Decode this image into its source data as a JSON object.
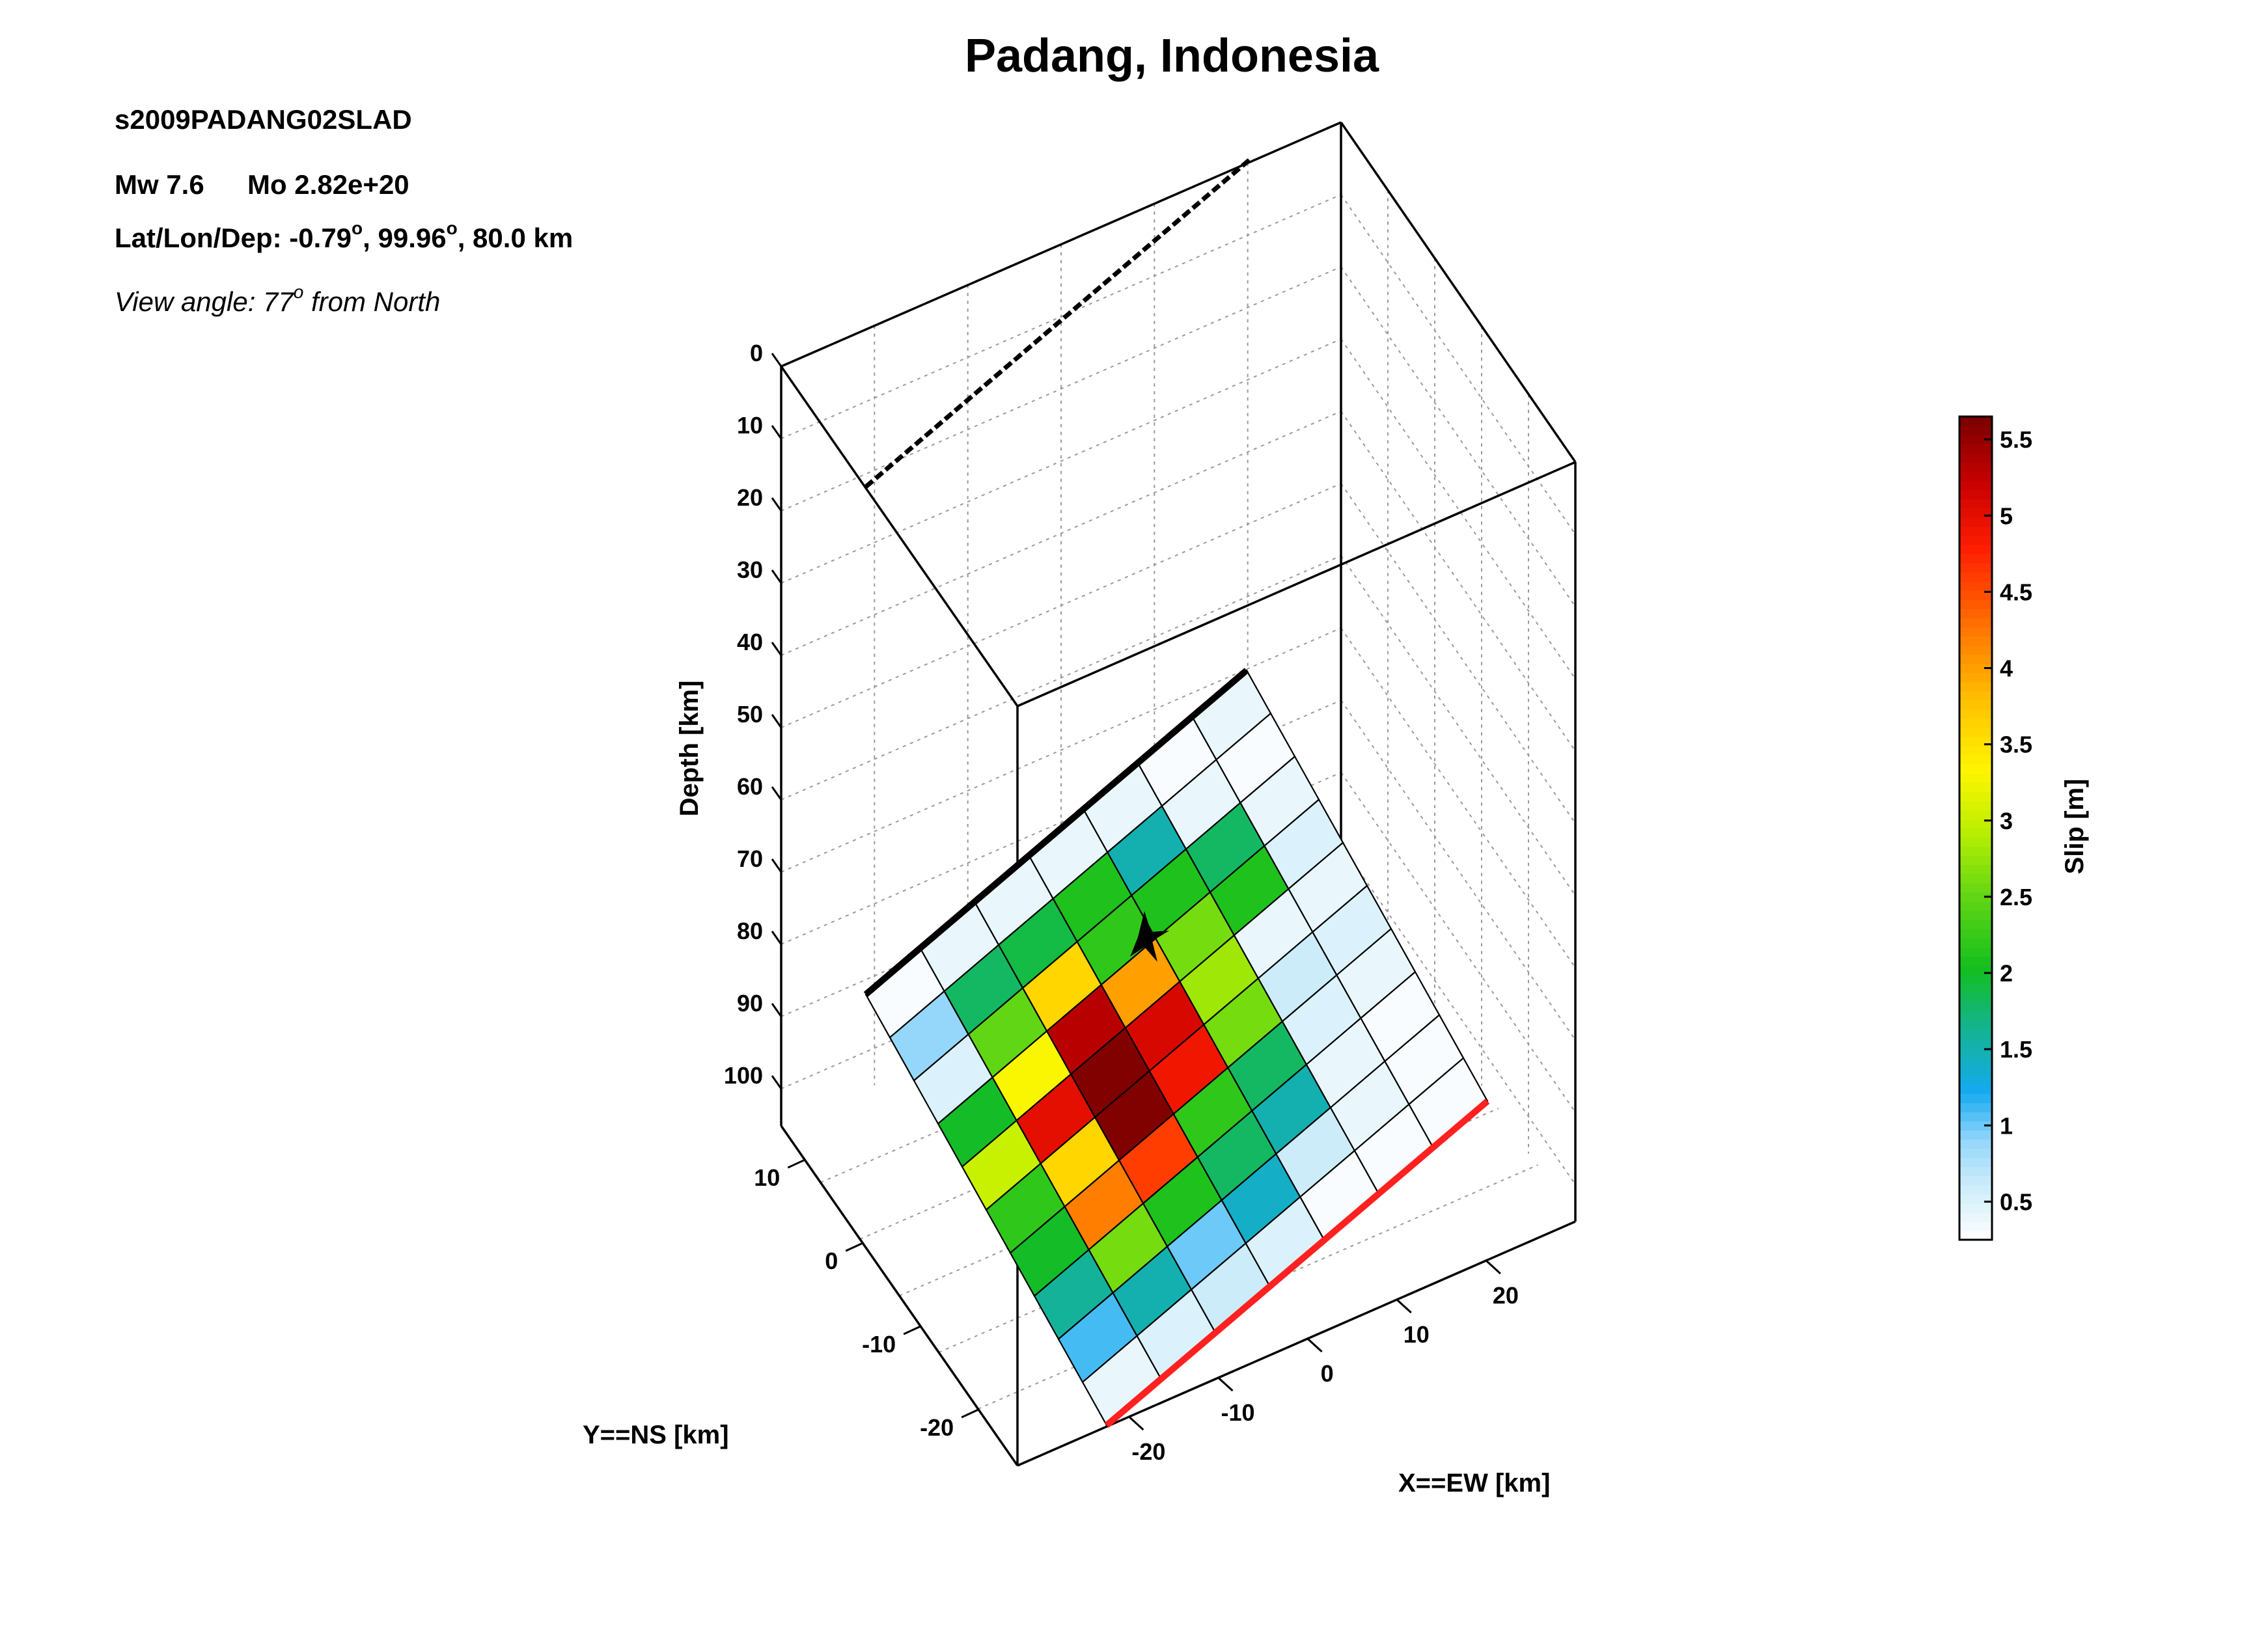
{
  "figure": {
    "title": "Padang, Indonesia",
    "event_id": "s2009PADANG02SLAD",
    "mw_label": "Mw 7.6",
    "mo_label": "Mo 2.82e+20",
    "location_prefix": "Lat/Lon/Dep: -0.79",
    "location_mid": ", 99.96",
    "location_suffix": ", 80.0 km",
    "degree_mark": "o",
    "view_prefix": "View angle: 77",
    "view_suffix": " from North"
  },
  "chart_data": {
    "type": "heatmap",
    "zlabel": "Depth [km]",
    "ylabel": "Y==NS [km]",
    "xlabel": "X==EW [km]",
    "colorbar_label": "Slip [m]",
    "depth_ticks": [
      "0",
      "10",
      "20",
      "30",
      "40",
      "50",
      "60",
      "70",
      "80",
      "90",
      "100"
    ],
    "ns_ticks": [
      "10",
      "0",
      "-10",
      "-20"
    ],
    "ew_ticks": [
      "-20",
      "-10",
      "0",
      "10",
      "20"
    ],
    "colorbar_ticks": [
      "0.5",
      "1",
      "1.5",
      "2",
      "2.5",
      "3",
      "3.5",
      "4",
      "4.5",
      "5",
      "5.5"
    ],
    "colorbar_range": [
      0.25,
      5.65
    ],
    "grid_columns_along_strike": 7,
    "grid_rows_along_dip": 10,
    "slip_m": [
      [
        0.3,
        0.4,
        0.4,
        0.4,
        0.4,
        0.3,
        0.4
      ],
      [
        0.9,
        1.8,
        1.9,
        2.1,
        1.5,
        0.4,
        0.3
      ],
      [
        0.5,
        2.5,
        3.6,
        2.2,
        2.1,
        1.8,
        0.4
      ],
      [
        2.0,
        3.3,
        5.3,
        4.0,
        2.6,
        2.1,
        0.5
      ],
      [
        3.0,
        5.0,
        5.6,
        5.1,
        2.8,
        0.4,
        0.4
      ],
      [
        2.2,
        3.6,
        5.6,
        4.9,
        2.6,
        0.6,
        0.5
      ],
      [
        2.0,
        4.2,
        4.6,
        2.2,
        1.8,
        0.5,
        0.4
      ],
      [
        1.6,
        2.6,
        2.1,
        1.8,
        1.5,
        0.4,
        0.3
      ],
      [
        1.1,
        1.5,
        1.0,
        1.4,
        0.6,
        0.4,
        0.3
      ],
      [
        0.4,
        0.5,
        0.6,
        0.5,
        0.3,
        0.3,
        0.3
      ]
    ],
    "hypocenter_marker": "star",
    "top_edge_color": "#000000",
    "bottom_edge_color": "#ff2020",
    "surface_trace_style": "dashed"
  }
}
